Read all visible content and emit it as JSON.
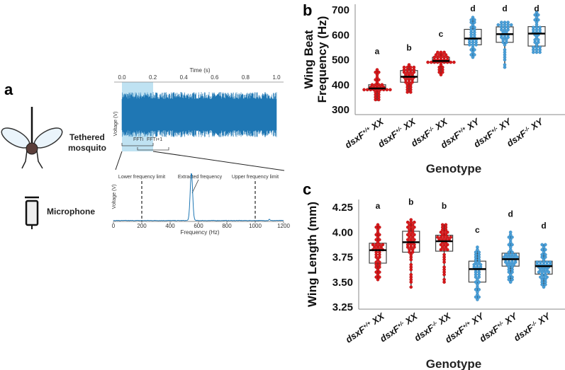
{
  "panel_a": {
    "label": "a",
    "mosquito_label_1": "Tethered",
    "mosquito_label_2": "mosquito",
    "microphone_label": "Microphone",
    "time_plot": {
      "xlabel": "Time (s)",
      "ylabel": "Voltage (V)",
      "ticks": [
        "0.0",
        "0.2",
        "0.4",
        "0.6",
        "0.8",
        "1.0"
      ],
      "highlight_range_s": [
        0.0,
        0.2
      ],
      "fft_labels": [
        "FFTi",
        "FFTi+1"
      ]
    },
    "freq_plot": {
      "xlabel": "Frequency (Hz)",
      "ylabel": "Voltage (V)",
      "ticks": [
        "0",
        "200",
        "400",
        "600",
        "800",
        "1000",
        "1200"
      ],
      "xlim": [
        0,
        1200
      ],
      "lower_limit_hz": 200,
      "upper_limit_hz": 1000,
      "peak_hz": 550,
      "annotations": {
        "lower": "Lower frequency limit",
        "extracted": "Extracted frequency",
        "upper": "Upper frequency limit"
      }
    }
  },
  "chart_data": [
    {
      "type": "box",
      "panel": "b",
      "ylabel_1": "Wing Beat",
      "ylabel_2": "Frequency (Hz)",
      "xlabel": "Genotype",
      "ylim": [
        290,
        710
      ],
      "yticks": [
        "300",
        "400",
        "500",
        "600",
        "700"
      ],
      "ytick_values": [
        300,
        400,
        500,
        600,
        700
      ],
      "dot_step": 10,
      "groups": [
        {
          "base": "dsxF",
          "sup": "+/+",
          "sex": "XX",
          "color": "#d7191c",
          "letter": "a",
          "min": 335,
          "q1": 380,
          "median": 385,
          "q3": 400,
          "max": 460,
          "n": 34
        },
        {
          "base": "dsxF",
          "sup": "+/-",
          "sex": "XX",
          "color": "#d7191c",
          "letter": "b",
          "min": 370,
          "q1": 410,
          "median": 432,
          "q3": 457,
          "max": 475,
          "n": 34
        },
        {
          "base": "dsxF",
          "sup": "-/-",
          "sex": "XX",
          "color": "#d7191c",
          "letter": "c",
          "min": 440,
          "q1": 488,
          "median": 495,
          "q3": 510,
          "max": 530,
          "n": 34
        },
        {
          "base": "dsxF",
          "sup": "+/+",
          "sex": "XY",
          "color": "#4a9fd8",
          "letter": "d",
          "min": 510,
          "q1": 560,
          "median": 585,
          "q3": 622,
          "max": 670,
          "n": 32
        },
        {
          "base": "dsxF",
          "sup": "+/-",
          "sex": "XY",
          "color": "#4a9fd8",
          "letter": "d",
          "min": 473,
          "q1": 570,
          "median": 603,
          "q3": 632,
          "max": 652,
          "n": 34
        },
        {
          "base": "dsxF",
          "sup": "-/-",
          "sex": "XY",
          "color": "#4a9fd8",
          "letter": "d",
          "min": 528,
          "q1": 555,
          "median": 605,
          "q3": 633,
          "max": 690,
          "n": 34
        }
      ]
    },
    {
      "type": "box",
      "panel": "c",
      "ylabel_1": "Wing Length (mm)",
      "xlabel": "Genotype",
      "ylim": [
        3.22,
        4.35
      ],
      "yticks": [
        "3.25",
        "3.50",
        "3.75",
        "4.00",
        "4.25"
      ],
      "ytick_values": [
        3.25,
        3.5,
        3.75,
        4.0,
        4.25
      ],
      "dot_step": 0.025,
      "groups": [
        {
          "base": "dsxF",
          "sup": "+/+",
          "sex": "XX",
          "color": "#d7191c",
          "letter": "a",
          "min": 3.53,
          "q1": 3.69,
          "median": 3.82,
          "q3": 3.89,
          "max": 4.08,
          "n": 42
        },
        {
          "base": "dsxF",
          "sup": "+/-",
          "sex": "XX",
          "color": "#d7191c",
          "letter": "b",
          "min": 3.46,
          "q1": 3.8,
          "median": 3.9,
          "q3": 4.01,
          "max": 4.12,
          "n": 44
        },
        {
          "base": "dsxF",
          "sup": "-/-",
          "sex": "XX",
          "color": "#d7191c",
          "letter": "b",
          "min": 3.5,
          "q1": 3.81,
          "median": 3.91,
          "q3": 3.97,
          "max": 4.08,
          "n": 40
        },
        {
          "base": "dsxF",
          "sup": "+/+",
          "sex": "XY",
          "color": "#4a9fd8",
          "letter": "c",
          "min": 3.32,
          "q1": 3.5,
          "median": 3.63,
          "q3": 3.71,
          "max": 3.84,
          "n": 38
        },
        {
          "base": "dsxF",
          "sup": "+/-",
          "sex": "XY",
          "color": "#4a9fd8",
          "letter": "d",
          "min": 3.5,
          "q1": 3.66,
          "median": 3.73,
          "q3": 3.79,
          "max": 4.0,
          "n": 44
        },
        {
          "base": "dsxF",
          "sup": "-/-",
          "sex": "XY",
          "color": "#4a9fd8",
          "letter": "d",
          "min": 3.46,
          "q1": 3.58,
          "median": 3.66,
          "q3": 3.71,
          "max": 3.88,
          "n": 44
        }
      ]
    }
  ]
}
